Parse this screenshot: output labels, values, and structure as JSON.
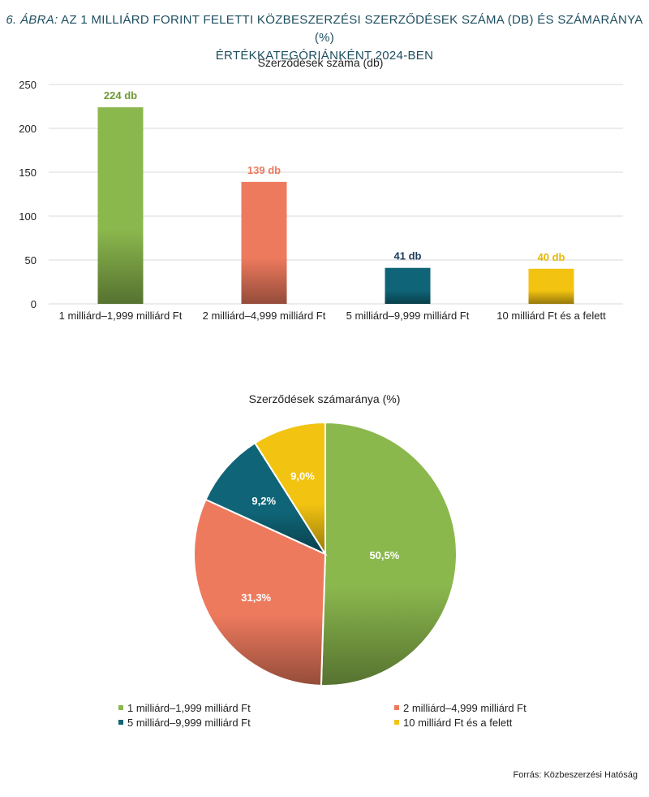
{
  "figure": {
    "title_lead": "6. ÁBRA:",
    "title_line1": "AZ 1 MILLIÁRD FORINT FELETTI KÖZBESZERZÉSI SZERZŐDÉSEK SZÁMA (DB) ÉS SZÁMARÁNYA (%)",
    "title_line2": "ÉRTÉKKATEGÓRIÁNKÉNT 2024-BEN",
    "source": "Forrás: Közbeszerzési Hatóság"
  },
  "chart_data": [
    {
      "type": "bar",
      "title": "Szerződések száma (db)",
      "categories": [
        "1 milliárd–1,999 milliárd Ft",
        "2 milliárd–4,999 milliárd Ft",
        "5 milliárd–9,999 milliárd Ft",
        "10 milliárd Ft és a felett"
      ],
      "values": [
        224,
        139,
        41,
        40
      ],
      "data_labels": [
        "224 db",
        "139 db",
        "41 db",
        "40 db"
      ],
      "ylim": [
        0,
        250
      ],
      "yticks": [
        0,
        50,
        100,
        150,
        200,
        250
      ],
      "grid": true,
      "colors": [
        "#8bb84d",
        "#ee7a5e",
        "#0f6577",
        "#f2c311"
      ],
      "label_colors": [
        "#6f9a35",
        "#ee7a5e",
        "#1d3d5e",
        "#e6b800"
      ]
    },
    {
      "type": "pie",
      "title": "Szerződések számaránya (%)",
      "categories": [
        "1 milliárd–1,999 milliárd Ft",
        "2 milliárd–4,999 milliárd Ft",
        "5 milliárd–9,999 milliárd Ft",
        "10 milliárd Ft és a felett"
      ],
      "values": [
        50.5,
        31.3,
        9.2,
        9.0
      ],
      "data_labels": [
        "50,5%",
        "31,3%",
        "9,2%",
        "9,0%"
      ],
      "colors": [
        "#8bb84d",
        "#ee7a5e",
        "#0f6577",
        "#f2c311"
      ],
      "legend_position": "bottom"
    }
  ]
}
